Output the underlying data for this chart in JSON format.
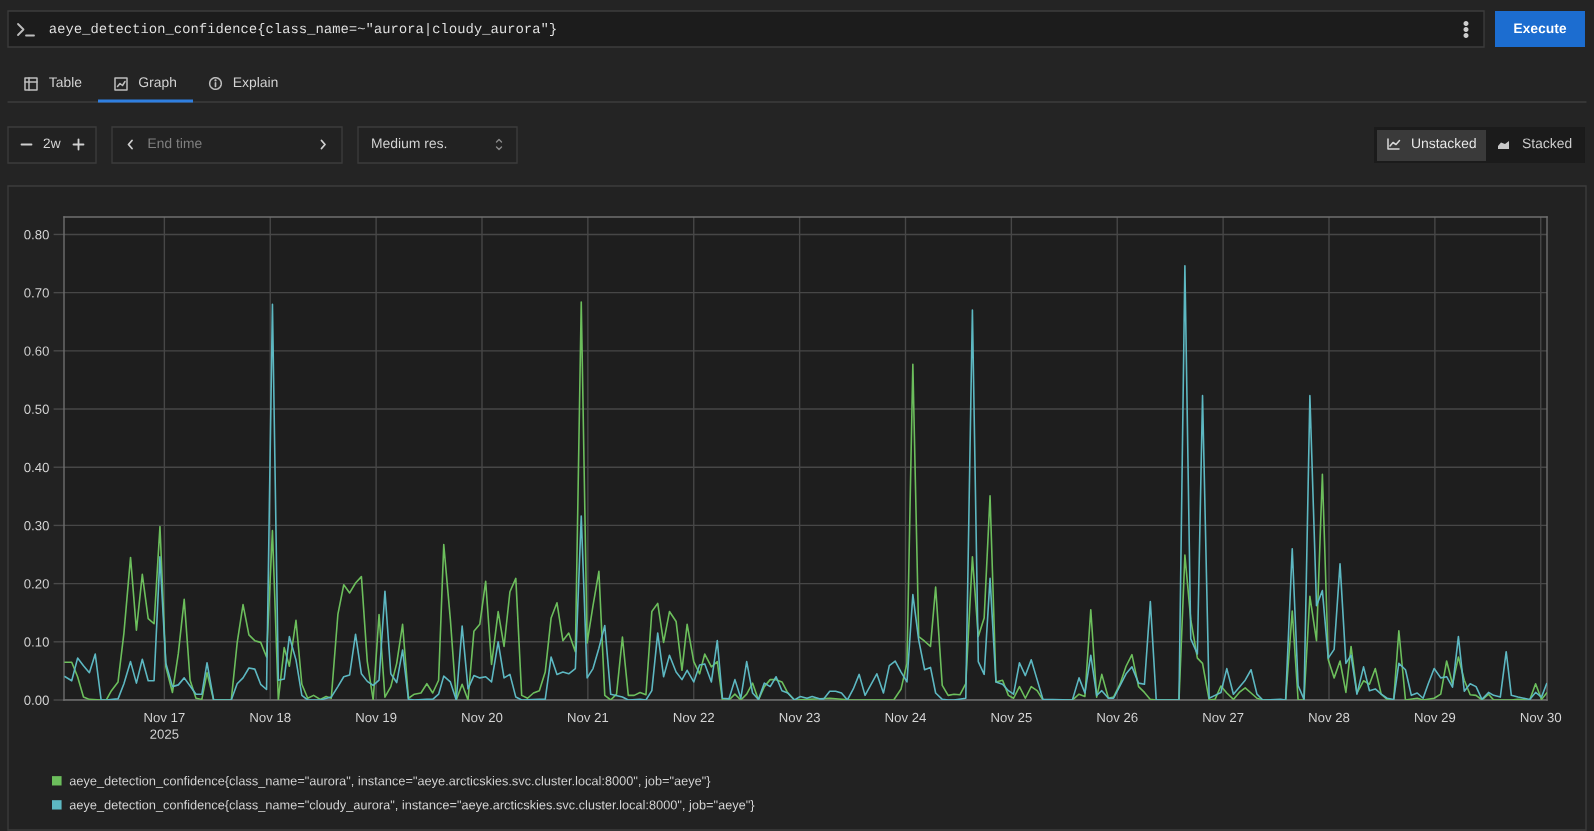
{
  "chart_data": {
    "type": "line",
    "title": "aeye_detection_confidence{class_name=~\"aurora|cloudy_aurora\"}",
    "annotations": [
      "Execute",
      "Table",
      "Graph",
      "Explain",
      "2w",
      "End time",
      "Medium res.",
      "Unstacked",
      "Stacked"
    ],
    "xlim": [
      "2025-11-16T01:15",
      "2025-11-30T01:25"
    ],
    "xticks": [
      {
        "value": "2025-11-17",
        "label": "Nov 17\n2025"
      },
      {
        "value": "2025-11-18",
        "label": "Nov 18"
      },
      {
        "value": "2025-11-19",
        "label": "Nov 19"
      },
      {
        "value": "2025-11-20",
        "label": "Nov 20"
      },
      {
        "value": "2025-11-21",
        "label": "Nov 21"
      },
      {
        "value": "2025-11-22",
        "label": "Nov 22"
      },
      {
        "value": "2025-11-23",
        "label": "Nov 23"
      },
      {
        "value": "2025-11-24",
        "label": "Nov 24"
      },
      {
        "value": "2025-11-25",
        "label": "Nov 25"
      },
      {
        "value": "2025-11-26",
        "label": "Nov 26"
      },
      {
        "value": "2025-11-27",
        "label": "Nov 27"
      },
      {
        "value": "2025-11-28",
        "label": "Nov 28"
      },
      {
        "value": "2025-11-29",
        "label": "Nov 29"
      },
      {
        "value": "2025-11-30",
        "label": "Nov 30"
      }
    ],
    "ylim": [
      0,
      0.83
    ],
    "yticks": [
      {
        "value": 0,
        "label": "0.00"
      },
      {
        "value": 0.1,
        "label": "0.10"
      },
      {
        "value": 0.2,
        "label": "0.20"
      },
      {
        "value": 0.3,
        "label": "0.30"
      },
      {
        "value": 0.4,
        "label": "0.40"
      },
      {
        "value": 0.5,
        "label": "0.50"
      },
      {
        "value": 0.6,
        "label": "0.60"
      },
      {
        "value": 0.7,
        "label": "0.70"
      },
      {
        "value": 0.8,
        "label": "0.80"
      }
    ],
    "grid": true,
    "legend": "bottom",
    "series": [
      {
        "name": "aeye_detection_confidence{class_name=\"aurora\", instance=\"aeye.arcticskies.svc.cluster.local:8000\", job=\"aeye\"}",
        "color": "#6cbe5c",
        "x": [
          "2025-11-16T01:30",
          "2025-11-16T03:00",
          "2025-11-16T04:20",
          "2025-11-16T05:40",
          "2025-11-16T07:00",
          "2025-11-16T09:40",
          "2025-11-16T10:50",
          "2025-11-16T12:00",
          "2025-11-16T13:30",
          "2025-11-16T14:50",
          "2025-11-16T16:20",
          "2025-11-16T17:40",
          "2025-11-16T19:00",
          "2025-11-16T20:20",
          "2025-11-16T21:40",
          "2025-11-16T23:00",
          "2025-11-17T00:20",
          "2025-11-17T01:50",
          "2025-11-17T03:10",
          "2025-11-17T04:30",
          "2025-11-17T05:50",
          "2025-11-17T07:10",
          "2025-11-17T08:30",
          "2025-11-17T09:40",
          "2025-11-17T11:10",
          "2025-11-17T15:10",
          "2025-11-17T16:30",
          "2025-11-17T17:50",
          "2025-11-17T19:10",
          "2025-11-17T20:30",
          "2025-11-17T21:50",
          "2025-11-17T23:10",
          "2025-11-18T00:30",
          "2025-11-18T01:50",
          "2025-11-18T03:10",
          "2025-11-18T04:20",
          "2025-11-18T05:50",
          "2025-11-18T07:10",
          "2025-11-18T08:30",
          "2025-11-18T09:50",
          "2025-11-18T11:20",
          "2025-11-18T12:40",
          "2025-11-18T13:50",
          "2025-11-18T15:20",
          "2025-11-18T16:40",
          "2025-11-18T18:00",
          "2025-11-18T19:20",
          "2025-11-18T20:40",
          "2025-11-18T22:00",
          "2025-11-18T23:20",
          "2025-11-19T00:40",
          "2025-11-19T02:00",
          "2025-11-19T03:20",
          "2025-11-19T04:40",
          "2025-11-19T06:00",
          "2025-11-19T07:20",
          "2025-11-19T08:40",
          "2025-11-19T10:10",
          "2025-11-19T11:30",
          "2025-11-19T12:50",
          "2025-11-19T14:10",
          "2025-11-19T15:20",
          "2025-11-19T16:50",
          "2025-11-19T18:10",
          "2025-11-19T19:30",
          "2025-11-19T20:50",
          "2025-11-19T22:10",
          "2025-11-19T23:30",
          "2025-11-20T00:50",
          "2025-11-20T02:10",
          "2025-11-20T03:40",
          "2025-11-20T05:00",
          "2025-11-20T06:20",
          "2025-11-20T07:40",
          "2025-11-20T09:00",
          "2025-11-20T10:20",
          "2025-11-20T11:40",
          "2025-11-20T13:00",
          "2025-11-20T14:20",
          "2025-11-20T15:40",
          "2025-11-20T17:00",
          "2025-11-20T18:20",
          "2025-11-20T19:40",
          "2025-11-20T21:10",
          "2025-11-20T22:30",
          "2025-11-20T23:50",
          "2025-11-21T01:10",
          "2025-11-21T02:30",
          "2025-11-21T03:50",
          "2025-11-21T05:10",
          "2025-11-21T06:30",
          "2025-11-21T07:50",
          "2025-11-21T09:10",
          "2025-11-21T10:30",
          "2025-11-21T11:50",
          "2025-11-21T13:10",
          "2025-11-21T14:30",
          "2025-11-21T15:50",
          "2025-11-21T17:10",
          "2025-11-21T18:30",
          "2025-11-21T20:00",
          "2025-11-21T21:20",
          "2025-11-21T22:30",
          "2025-11-22T00:00",
          "2025-11-22T01:20",
          "2025-11-22T02:30",
          "2025-11-22T04:00",
          "2025-11-22T05:20",
          "2025-11-22T06:30",
          "2025-11-22T08:00",
          "2025-11-22T09:20",
          "2025-11-22T10:40",
          "2025-11-22T12:00",
          "2025-11-22T13:20",
          "2025-11-22T14:40",
          "2025-11-22T16:00",
          "2025-11-22T17:20",
          "2025-11-22T18:40",
          "2025-11-22T20:00",
          "2025-11-22T21:20",
          "2025-11-22T22:50",
          "2025-11-23T06:50",
          "2025-11-23T11:30",
          "2025-11-23T21:20",
          "2025-11-23T23:00",
          "2025-11-24T00:20",
          "2025-11-24T01:40",
          "2025-11-24T03:00",
          "2025-11-24T04:20",
          "2025-11-24T05:40",
          "2025-11-24T06:50",
          "2025-11-24T08:20",
          "2025-11-24T09:40",
          "2025-11-24T11:00",
          "2025-11-24T12:20",
          "2025-11-24T13:40",
          "2025-11-24T15:10",
          "2025-11-24T16:30",
          "2025-11-24T17:50",
          "2025-11-24T19:10",
          "2025-11-24T20:30",
          "2025-11-24T22:00",
          "2025-11-24T23:20",
          "2025-11-25T00:30",
          "2025-11-25T01:50",
          "2025-11-25T03:10",
          "2025-11-25T04:30",
          "2025-11-25T05:50",
          "2025-11-25T07:10",
          "2025-11-25T13:50",
          "2025-11-25T15:20",
          "2025-11-25T16:40",
          "2025-11-25T18:00",
          "2025-11-25T19:20",
          "2025-11-25T20:30",
          "2025-11-25T22:00",
          "2025-11-25T23:10",
          "2025-11-26T00:40",
          "2025-11-26T02:00",
          "2025-11-26T03:20",
          "2025-11-26T04:50",
          "2025-11-26T06:10",
          "2025-11-26T07:30",
          "2025-11-26T08:50",
          "2025-11-26T14:00",
          "2025-11-26T15:20",
          "2025-11-26T16:40",
          "2025-11-26T18:10",
          "2025-11-26T19:20",
          "2025-11-26T20:50",
          "2025-11-26T22:10",
          "2025-11-26T23:30",
          "2025-11-27T00:50",
          "2025-11-27T02:20",
          "2025-11-27T03:40",
          "2025-11-27T05:00",
          "2025-11-27T06:20",
          "2025-11-27T07:40",
          "2025-11-27T09:00",
          "2025-11-27T14:10",
          "2025-11-27T15:40",
          "2025-11-27T17:00",
          "2025-11-27T18:20",
          "2025-11-27T19:40",
          "2025-11-27T21:10",
          "2025-11-27T22:30",
          "2025-11-27T23:50",
          "2025-11-28T01:10",
          "2025-11-28T02:30",
          "2025-11-28T03:50",
          "2025-11-28T05:00",
          "2025-11-28T06:20",
          "2025-11-28T07:50",
          "2025-11-28T09:10",
          "2025-11-28T10:30",
          "2025-11-28T11:50",
          "2025-11-28T13:10",
          "2025-11-28T14:40",
          "2025-11-28T15:50",
          "2025-11-28T17:20",
          "2025-11-28T20:00",
          "2025-11-28T21:20",
          "2025-11-28T23:50",
          "2025-11-29T01:20",
          "2025-11-29T02:40",
          "2025-11-29T04:00",
          "2025-11-29T05:20",
          "2025-11-29T06:40",
          "2025-11-29T08:00",
          "2025-11-29T09:20",
          "2025-11-29T10:40",
          "2025-11-29T12:10",
          "2025-11-29T13:20",
          "2025-11-29T17:20",
          "2025-11-29T18:50",
          "2025-11-29T21:30",
          "2025-11-29T22:50",
          "2025-11-30T00:10",
          "2025-11-30T01:20"
        ],
        "values": [
          0.065,
          0.065,
          0.04,
          0.005,
          0.001,
          0,
          0,
          0.016,
          0.031,
          0.115,
          0.245,
          0.12,
          0.216,
          0.14,
          0.131,
          0.298,
          0.057,
          0.013,
          0.08,
          0.173,
          0.034,
          0.003,
          0.001,
          0.047,
          0,
          0,
          0.098,
          0.164,
          0.112,
          0.102,
          0.099,
          0.074,
          0.291,
          0,
          0.09,
          0.058,
          0.137,
          0.027,
          0.003,
          0.008,
          0.001,
          0.006,
          0.003,
          0.147,
          0.198,
          0.184,
          0.201,
          0.212,
          0.066,
          0,
          0.147,
          0.005,
          0.023,
          0.063,
          0.13,
          0.003,
          0.01,
          0.012,
          0.028,
          0.012,
          0.034,
          0.267,
          0.138,
          0,
          0.027,
          0,
          0.118,
          0.13,
          0.204,
          0.061,
          0.152,
          0.092,
          0.186,
          0.209,
          0.008,
          0.003,
          0.012,
          0.016,
          0.048,
          0.141,
          0.167,
          0.102,
          0.115,
          0.083,
          0.684,
          0.098,
          0.162,
          0.221,
          0.008,
          0,
          0.01,
          0.108,
          0.008,
          0.008,
          0.013,
          0.009,
          0.152,
          0.166,
          0.099,
          0.152,
          0.135,
          0.051,
          0.13,
          0.066,
          0.045,
          0.079,
          0.057,
          0.066,
          0,
          0,
          0.01,
          0,
          0.01,
          0.029,
          0,
          0.023,
          0.035,
          0.035,
          0.031,
          0.012,
          0,
          0.003,
          0,
          0,
          0.019,
          0.063,
          0.577,
          0.109,
          0.101,
          0.092,
          0.194,
          0.025,
          0.008,
          0.01,
          0.009,
          0.028,
          0.246,
          0.109,
          0.141,
          0.351,
          0.031,
          0.034,
          0.008,
          0.003,
          0.023,
          0.003,
          0.023,
          0.016,
          0,
          0,
          0.01,
          0.006,
          0.155,
          0.005,
          0.044,
          0.003,
          0.005,
          0.028,
          0.058,
          0.078,
          0.023,
          0.013,
          0.001,
          0,
          0,
          0.249,
          0.138,
          0.072,
          0.063,
          0,
          0.001,
          0.024,
          0.012,
          0.001,
          0.013,
          0.021,
          0.012,
          0.003,
          0,
          0,
          0.153,
          0,
          0,
          0.178,
          0.102,
          0.388,
          0.069,
          0.038,
          0.067,
          0.013,
          0.092,
          0.012,
          0.033,
          0.027,
          0.054,
          0.01,
          0.001,
          0,
          0.119,
          0,
          0.003,
          0,
          0.003,
          0.01,
          0.067,
          0.027,
          0.074,
          0.034,
          0.009,
          0.008,
          0,
          0.01,
          0,
          0,
          0.001,
          0,
          0.028,
          0.001,
          0.012
        ]
      },
      {
        "name": "aeye_detection_confidence{class_name=\"cloudy_aurora\", instance=\"aeye.arcticskies.svc.cluster.local:8000\", job=\"aeye\"}",
        "color": "#5db8c2",
        "x": [
          "2025-11-16T01:30",
          "2025-11-16T03:00",
          "2025-11-16T04:20",
          "2025-11-16T05:40",
          "2025-11-16T07:00",
          "2025-11-16T08:20",
          "2025-11-16T09:40",
          "2025-11-16T10:50",
          "2025-11-16T13:30",
          "2025-11-16T14:50",
          "2025-11-16T16:20",
          "2025-11-16T17:40",
          "2025-11-16T19:00",
          "2025-11-16T20:20",
          "2025-11-16T21:40",
          "2025-11-16T23:00",
          "2025-11-17T00:20",
          "2025-11-17T01:50",
          "2025-11-17T03:10",
          "2025-11-17T04:30",
          "2025-11-17T05:50",
          "2025-11-17T07:10",
          "2025-11-17T08:30",
          "2025-11-17T09:40",
          "2025-11-17T11:10",
          "2025-11-17T15:10",
          "2025-11-17T16:30",
          "2025-11-17T17:50",
          "2025-11-17T19:10",
          "2025-11-17T20:30",
          "2025-11-17T21:50",
          "2025-11-17T23:10",
          "2025-11-18T00:30",
          "2025-11-18T01:50",
          "2025-11-18T03:10",
          "2025-11-18T04:20",
          "2025-11-18T05:50",
          "2025-11-18T07:10",
          "2025-11-18T08:30",
          "2025-11-18T11:20",
          "2025-11-18T13:50",
          "2025-11-18T15:20",
          "2025-11-18T16:40",
          "2025-11-18T18:00",
          "2025-11-18T19:20",
          "2025-11-18T20:40",
          "2025-11-18T22:00",
          "2025-11-18T23:20",
          "2025-11-19T00:40",
          "2025-11-19T02:00",
          "2025-11-19T03:20",
          "2025-11-19T04:40",
          "2025-11-19T06:00",
          "2025-11-19T07:20",
          "2025-11-19T08:40",
          "2025-11-19T11:30",
          "2025-11-19T12:50",
          "2025-11-19T14:10",
          "2025-11-19T15:20",
          "2025-11-19T16:50",
          "2025-11-19T18:10",
          "2025-11-19T19:30",
          "2025-11-19T20:50",
          "2025-11-19T22:10",
          "2025-11-19T23:30",
          "2025-11-20T00:50",
          "2025-11-20T02:10",
          "2025-11-20T03:40",
          "2025-11-20T05:00",
          "2025-11-20T06:20",
          "2025-11-20T07:40",
          "2025-11-20T09:00",
          "2025-11-20T13:00",
          "2025-11-20T14:20",
          "2025-11-20T15:40",
          "2025-11-20T17:00",
          "2025-11-20T18:20",
          "2025-11-20T19:40",
          "2025-11-20T21:10",
          "2025-11-20T22:30",
          "2025-11-20T23:50",
          "2025-11-21T01:10",
          "2025-11-21T02:30",
          "2025-11-21T03:50",
          "2025-11-21T05:10",
          "2025-11-21T07:50",
          "2025-11-21T09:10",
          "2025-11-21T11:50",
          "2025-11-21T13:10",
          "2025-11-21T14:30",
          "2025-11-21T15:50",
          "2025-11-21T17:10",
          "2025-11-21T18:30",
          "2025-11-21T20:00",
          "2025-11-21T21:20",
          "2025-11-21T22:30",
          "2025-11-22T00:00",
          "2025-11-22T01:20",
          "2025-11-22T02:30",
          "2025-11-22T04:00",
          "2025-11-22T05:20",
          "2025-11-22T06:30",
          "2025-11-22T08:00",
          "2025-11-22T09:20",
          "2025-11-22T10:40",
          "2025-11-22T12:00",
          "2025-11-22T13:20",
          "2025-11-22T14:40",
          "2025-11-22T16:00",
          "2025-11-22T17:20",
          "2025-11-22T18:40",
          "2025-11-22T20:00",
          "2025-11-22T21:20",
          "2025-11-22T22:50",
          "2025-11-23T00:10",
          "2025-11-23T01:40",
          "2025-11-23T02:50",
          "2025-11-23T04:30",
          "2025-11-23T05:30",
          "2025-11-23T06:50",
          "2025-11-23T08:10",
          "2025-11-23T09:30",
          "2025-11-23T10:50",
          "2025-11-23T12:10",
          "2025-11-23T13:30",
          "2025-11-23T14:50",
          "2025-11-23T17:30",
          "2025-11-23T19:00",
          "2025-11-23T20:20",
          "2025-11-23T21:40",
          "2025-11-23T23:00",
          "2025-11-24T00:20",
          "2025-11-24T01:40",
          "2025-11-24T03:00",
          "2025-11-24T04:20",
          "2025-11-24T05:40",
          "2025-11-24T06:50",
          "2025-11-24T08:20",
          "2025-11-24T09:40",
          "2025-11-24T11:00",
          "2025-11-24T13:40",
          "2025-11-24T15:10",
          "2025-11-24T16:30",
          "2025-11-24T17:50",
          "2025-11-24T19:10",
          "2025-11-24T20:30",
          "2025-11-24T22:00",
          "2025-11-24T23:20",
          "2025-11-25T00:30",
          "2025-11-25T01:50",
          "2025-11-25T03:10",
          "2025-11-25T04:30",
          "2025-11-25T05:50",
          "2025-11-25T07:10",
          "2025-11-25T13:50",
          "2025-11-25T15:20",
          "2025-11-25T16:40",
          "2025-11-25T18:00",
          "2025-11-25T19:20",
          "2025-11-25T20:30",
          "2025-11-25T22:00",
          "2025-11-25T23:10",
          "2025-11-26T00:40",
          "2025-11-26T02:00",
          "2025-11-26T03:20",
          "2025-11-26T04:50",
          "2025-11-26T06:10",
          "2025-11-26T07:30",
          "2025-11-26T08:50",
          "2025-11-26T14:00",
          "2025-11-26T15:20",
          "2025-11-26T16:40",
          "2025-11-26T18:10",
          "2025-11-26T19:20",
          "2025-11-26T20:50",
          "2025-11-26T22:10",
          "2025-11-26T23:30",
          "2025-11-27T00:50",
          "2025-11-27T02:20",
          "2025-11-27T03:40",
          "2025-11-27T05:00",
          "2025-11-27T06:20",
          "2025-11-27T07:40",
          "2025-11-27T09:00",
          "2025-11-27T13:00",
          "2025-11-27T14:10",
          "2025-11-27T15:40",
          "2025-11-27T17:00",
          "2025-11-27T18:20",
          "2025-11-27T19:40",
          "2025-11-27T21:10",
          "2025-11-27T22:30",
          "2025-11-27T23:50",
          "2025-11-28T01:10",
          "2025-11-28T02:30",
          "2025-11-28T03:50",
          "2025-11-28T05:00",
          "2025-11-28T06:20",
          "2025-11-28T07:50",
          "2025-11-28T09:10",
          "2025-11-28T10:30",
          "2025-11-28T11:50",
          "2025-11-28T13:10",
          "2025-11-28T14:40",
          "2025-11-28T15:50",
          "2025-11-28T17:20",
          "2025-11-28T18:40",
          "2025-11-28T20:00",
          "2025-11-28T21:20",
          "2025-11-28T22:30",
          "2025-11-28T23:50",
          "2025-11-29T01:20",
          "2025-11-29T02:40",
          "2025-11-29T04:00",
          "2025-11-29T05:20",
          "2025-11-29T06:40",
          "2025-11-29T08:00",
          "2025-11-29T09:20",
          "2025-11-29T10:40",
          "2025-11-29T12:10",
          "2025-11-29T13:20",
          "2025-11-29T14:50",
          "2025-11-29T16:10",
          "2025-11-29T17:20",
          "2025-11-29T18:50",
          "2025-11-29T20:10",
          "2025-11-29T21:30",
          "2025-11-29T22:50",
          "2025-11-30T00:10",
          "2025-11-30T01:20"
        ],
        "values": [
          0.04,
          0.033,
          0.072,
          0.059,
          0.047,
          0.079,
          0,
          0,
          0.002,
          0.028,
          0.066,
          0.029,
          0.07,
          0.033,
          0.033,
          0.246,
          0.063,
          0.023,
          0.026,
          0.038,
          0.024,
          0.01,
          0.01,
          0.064,
          0,
          0,
          0.028,
          0.038,
          0.055,
          0.053,
          0.027,
          0.018,
          0.68,
          0.034,
          0.036,
          0.109,
          0.069,
          0.008,
          0,
          0,
          0.005,
          0.023,
          0.04,
          0.043,
          0.113,
          0.045,
          0.032,
          0.025,
          0.034,
          0.187,
          0.045,
          0.03,
          0.086,
          0.001,
          0,
          0.001,
          0.001,
          0.01,
          0.041,
          0.031,
          0,
          0.127,
          0.019,
          0.042,
          0.038,
          0.04,
          0.031,
          0.1,
          0.038,
          0.044,
          0.005,
          0,
          0.001,
          0.001,
          0.074,
          0.044,
          0.048,
          0.045,
          0.054,
          0.316,
          0.038,
          0.054,
          0.089,
          0.128,
          0.01,
          0.005,
          0,
          0.001,
          0,
          0.016,
          0.115,
          0.04,
          0.077,
          0.048,
          0.035,
          0.051,
          0.031,
          0.06,
          0.062,
          0.031,
          0.102,
          0.003,
          0.002,
          0.035,
          0.003,
          0.066,
          0.012,
          0.001,
          0.029,
          0.023,
          0.04,
          0.016,
          0.012,
          0,
          0.006,
          0.003,
          0.006,
          0.002,
          0.002,
          0.015,
          0.015,
          0.012,
          0,
          0.019,
          0.044,
          0.008,
          0.045,
          0.012,
          0.059,
          0.067,
          0.048,
          0.031,
          0.181,
          0.103,
          0.052,
          0.056,
          0.012,
          0.001,
          0,
          0,
          0.003,
          0.67,
          0.066,
          0.044,
          0.209,
          0.031,
          0.027,
          0.016,
          0.01,
          0.064,
          0.042,
          0.069,
          0.035,
          0.001,
          0,
          0.038,
          0.012,
          0.077,
          0.008,
          0.016,
          0.003,
          0.003,
          0.025,
          0.045,
          0.057,
          0.029,
          0.027,
          0.169,
          0,
          0,
          0.746,
          0.105,
          0.079,
          0.523,
          0.003,
          0.008,
          0.013,
          0.054,
          0.01,
          0.022,
          0.034,
          0.052,
          0.01,
          0,
          0.001,
          0,
          0.26,
          0.025,
          0.001,
          0.523,
          0.162,
          0.188,
          0.072,
          0.087,
          0.234,
          0.063,
          0.077,
          0.01,
          0.057,
          0.016,
          0.019,
          0.01,
          0.003,
          0.001,
          0.063,
          0.052,
          0.008,
          0.012,
          0.003,
          0.028,
          0.054,
          0.038,
          0.04,
          0.022,
          0.109,
          0.015,
          0.028,
          0.023,
          0.001,
          0.013,
          0.008,
          0.005,
          0.083,
          0.008,
          0.005,
          0.003,
          0.001,
          0.013,
          0.005,
          0.028
        ]
      }
    ]
  }
}
